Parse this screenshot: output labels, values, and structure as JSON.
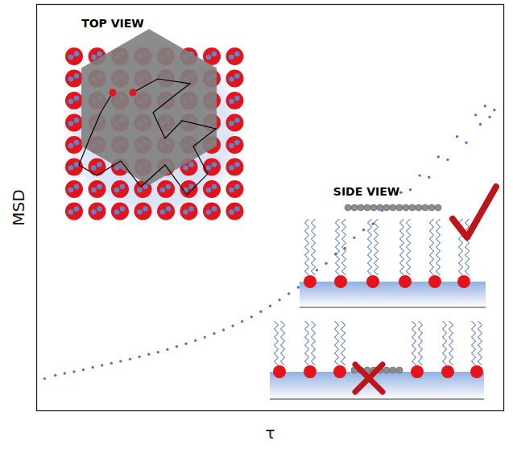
{
  "chart_data": {
    "type": "scatter",
    "x_label": "τ",
    "y_label": "MSD",
    "x": [
      1.7,
      4,
      6,
      8,
      10,
      12,
      14,
      16,
      18,
      20,
      22,
      24,
      26,
      28,
      30,
      32,
      34,
      36,
      38,
      40,
      42,
      44,
      46,
      48,
      50,
      52,
      54,
      56,
      58,
      60,
      62,
      64,
      66,
      68,
      70,
      72,
      74,
      76,
      78,
      80,
      82,
      84,
      86,
      88,
      90,
      92,
      94,
      95,
      96,
      97,
      98
    ],
    "values": [
      7.9,
      8.7,
      9.2,
      9.6,
      10.1,
      10.7,
      11.2,
      11.7,
      12.2,
      12.7,
      13.3,
      13.9,
      14.4,
      15.1,
      15.8,
      16.5,
      17.3,
      18.1,
      19.0,
      19.9,
      20.9,
      22.0,
      23.1,
      24.4,
      25.8,
      27.3,
      28.8,
      30.4,
      32.2,
      34.6,
      36.3,
      38.6,
      40.0,
      42.6,
      44.5,
      46.0,
      49.3,
      50.0,
      53.7,
      54.4,
      57.9,
      57.5,
      62.5,
      61.8,
      67.5,
      66.0,
      72.8,
      70.5,
      75.0,
      72.3,
      74.0
    ],
    "color": "#4a78c4",
    "marker": "dot",
    "xlim": [
      0,
      100
    ],
    "ylim": [
      0,
      100
    ],
    "xticks": [],
    "yticks": [],
    "tick_labels": false,
    "annotations": [
      "TOP VIEW",
      "SIDE VIEW"
    ]
  }
}
